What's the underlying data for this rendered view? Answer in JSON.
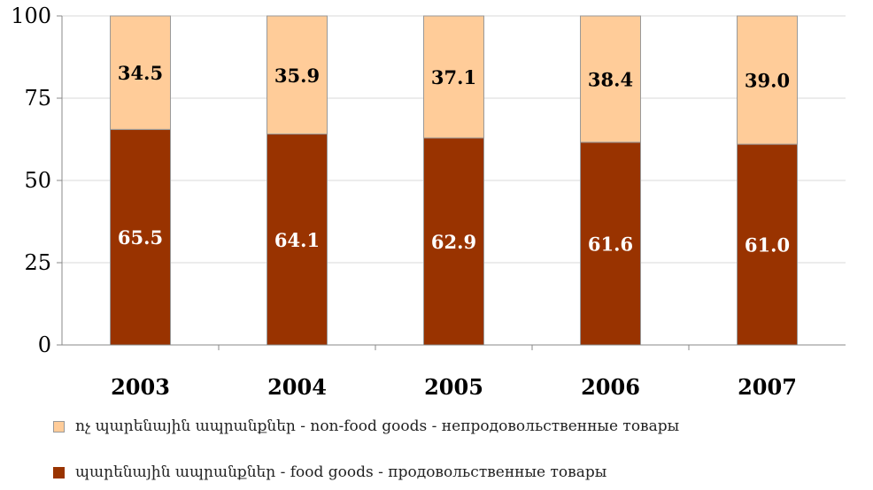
{
  "chart_data": {
    "type": "bar",
    "stacked": true,
    "categories": [
      "2003",
      "2004",
      "2005",
      "2006",
      "2007"
    ],
    "series": [
      {
        "name": "պարենային ապրանքներ - food goods - продовольственные товары",
        "values": [
          65.5,
          64.1,
          62.9,
          61.6,
          61.0
        ],
        "labels": [
          "65.5",
          "64.1",
          "62.9",
          "61.6",
          "61.0"
        ],
        "color": "#993300",
        "label_color": "#ffffff"
      },
      {
        "name": "ոչ պարենային ապրանքներ - non-food goods - непродовольственные товары",
        "values": [
          34.5,
          35.9,
          37.1,
          38.4,
          39.0
        ],
        "labels": [
          "34.5",
          "35.9",
          "37.1",
          "38.4",
          "39.0"
        ],
        "color": "#ffcc99",
        "label_color": "#000000"
      }
    ],
    "yticks": [
      "0",
      "25",
      "50",
      "75",
      "100"
    ],
    "ylim": [
      0,
      100
    ],
    "grid": true,
    "legend_position": "bottom"
  }
}
